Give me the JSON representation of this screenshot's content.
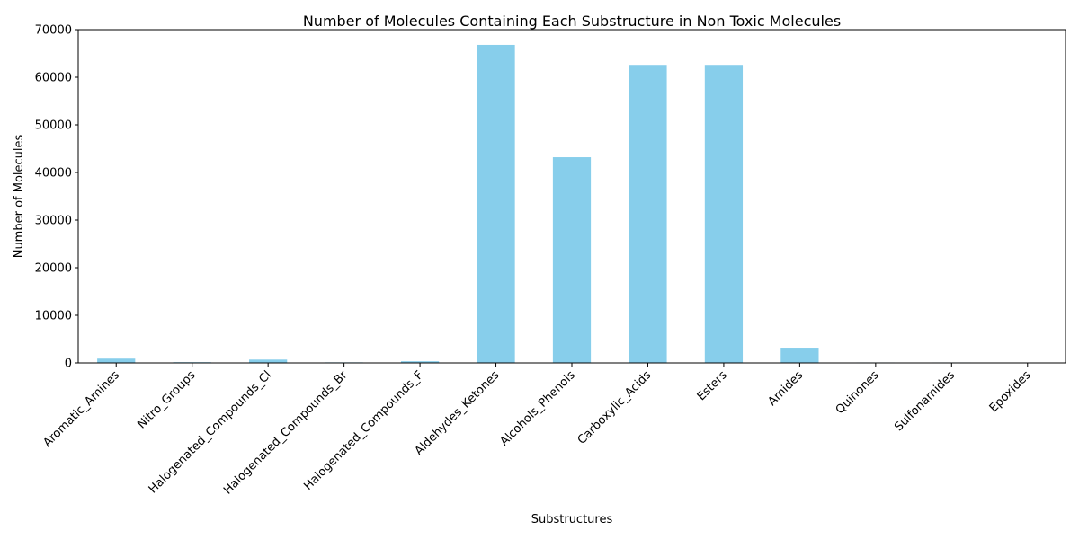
{
  "chart_data": {
    "type": "bar",
    "title": "Number of Molecules Containing Each Substructure in Non Toxic Molecules",
    "xlabel": "Substructures",
    "ylabel": "Number of Molecules",
    "categories": [
      "Aromatic_Amines",
      "Nitro_Groups",
      "Halogenated_Compounds_Cl",
      "Halogenated_Compounds_Br",
      "Halogenated_Compounds_F",
      "Aldehydes_Ketones",
      "Alcohols_Phenols",
      "Carboxylic_Acids",
      "Esters",
      "Amides",
      "Quinones",
      "Sulfonamides",
      "Epoxides"
    ],
    "values": [
      900,
      150,
      700,
      120,
      350,
      66800,
      43200,
      62600,
      62600,
      3200,
      100,
      100,
      10
    ],
    "ylim": [
      0,
      70000
    ],
    "yticks": [
      0,
      10000,
      20000,
      30000,
      40000,
      50000,
      60000,
      70000
    ],
    "ytick_labels": [
      "0",
      "10000",
      "20000",
      "30000",
      "40000",
      "50000",
      "60000",
      "70000"
    ],
    "bar_color": "#87ceeb",
    "grid": false,
    "legend": "none"
  }
}
